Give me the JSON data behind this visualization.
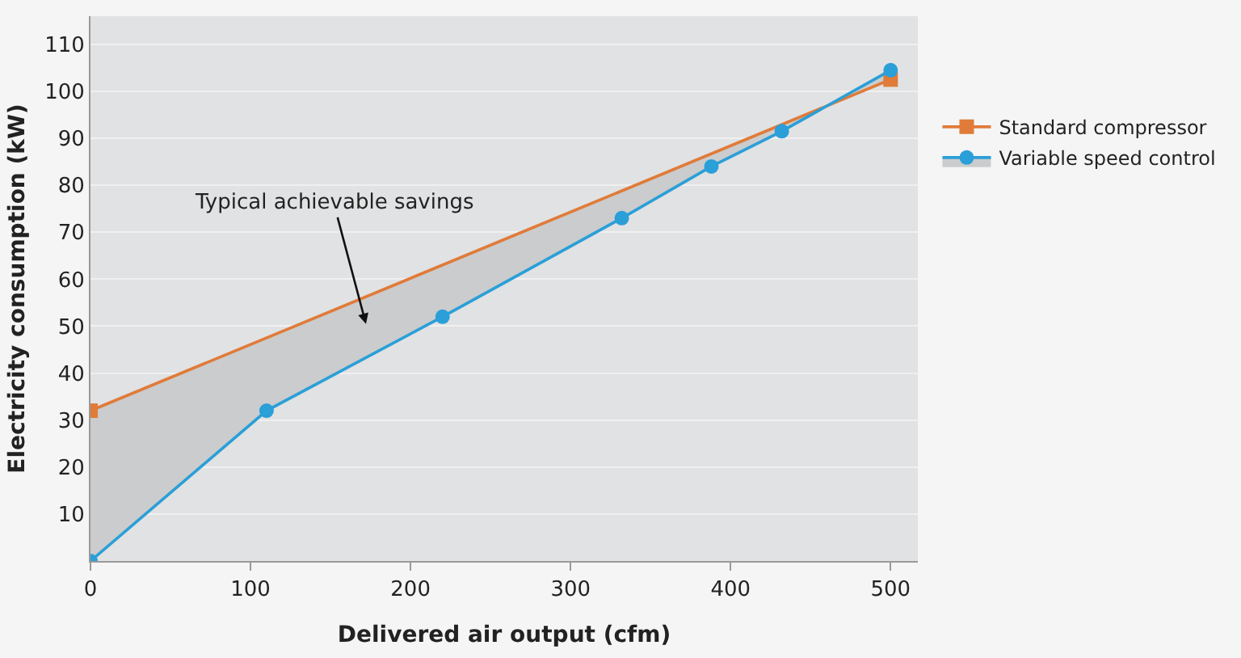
{
  "chart_data": {
    "type": "line",
    "xlabel": "Delivered air output (cfm)",
    "ylabel": "Electricity consumption (kW)",
    "series": [
      {
        "name": "Standard compressor",
        "color": "#e07b39",
        "marker": "square",
        "x": [
          0,
          500
        ],
        "values": [
          32,
          102.5
        ]
      },
      {
        "name": "Variable speed control",
        "color": "#2a9fd8",
        "marker": "circle",
        "x": [
          0,
          110,
          220,
          332,
          388,
          432,
          500
        ],
        "values": [
          0,
          32,
          52,
          73,
          84,
          91.5,
          104.5
        ]
      }
    ],
    "annotations": [
      "Typical achievable savings"
    ],
    "xlim": [
      0,
      517
    ],
    "xticks": [
      0,
      100,
      200,
      300,
      400,
      500
    ],
    "ylim": [
      0,
      116
    ],
    "yticks": [
      10,
      20,
      30,
      40,
      50,
      60,
      70,
      80,
      90,
      100,
      110
    ],
    "grid": "y",
    "legend": "top right"
  }
}
